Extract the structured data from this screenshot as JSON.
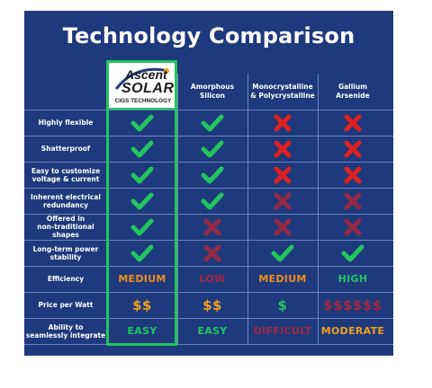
{
  "title": "Technology Comparison",
  "logo": {
    "line1": "Ascent",
    "line2": "SOLAR",
    "line3": "CIGS TECHNOLOGY"
  },
  "columns": [
    {
      "line1": "Amorphous",
      "line2": "Silicon"
    },
    {
      "line1": "Monocrystalline",
      "line2": "& Polycrystalline"
    },
    {
      "line1": "Gallium",
      "line2": "Arsenide"
    }
  ],
  "rows": [
    {
      "label1": "Highly flexible",
      "label2": "",
      "cells": [
        "check",
        "check",
        "cross",
        "cross"
      ]
    },
    {
      "label1": "Shatterproof",
      "label2": "",
      "cells": [
        "check",
        "check",
        "cross",
        "cross"
      ]
    },
    {
      "label1": "Easy to customize",
      "label2": "voltage & current",
      "cells": [
        "check",
        "check",
        "cross",
        "cross"
      ]
    },
    {
      "label1": "Inherent electrical",
      "label2": "redundancy",
      "cells": [
        "check",
        "check",
        "cross-dim",
        "cross-dim"
      ]
    },
    {
      "label1": "Offered in",
      "label2": "non-traditional shapes",
      "cells": [
        "check",
        "cross-dim",
        "cross-dim",
        "cross-dim"
      ]
    },
    {
      "label1": "Long-term power",
      "label2": "stability",
      "cells": [
        "check",
        "cross-dim",
        "check",
        "check"
      ]
    }
  ],
  "text_rows": [
    {
      "label1": "Efficiency",
      "label2": "",
      "kind": "word",
      "cells": [
        {
          "text": "MEDIUM",
          "color": "#f08c1e"
        },
        {
          "text": "LOW",
          "color": "#e02020",
          "dim": true
        },
        {
          "text": "MEDIUM",
          "color": "#f08c1e"
        },
        {
          "text": "HIGH",
          "color": "#22c55e"
        }
      ]
    },
    {
      "label1": "Price per Watt",
      "label2": "",
      "kind": "dollar",
      "cells": [
        {
          "text": "$$",
          "color": "#f0a01e"
        },
        {
          "text": "$$",
          "color": "#f0a01e"
        },
        {
          "text": "$",
          "color": "#22c55e"
        },
        {
          "text": "$$$$$$",
          "color": "#e02020",
          "dim": true
        }
      ]
    },
    {
      "label1": "Ability to",
      "label2": "seamlessly integrate",
      "kind": "word",
      "cells": [
        {
          "text": "EASY",
          "color": "#22c55e"
        },
        {
          "text": "EASY",
          "color": "#22c55e"
        },
        {
          "text": "DIFFICULT",
          "color": "#e02020",
          "dim": true
        },
        {
          "text": "MODERATE",
          "color": "#f0a01e"
        }
      ]
    }
  ],
  "colors": {
    "panel": "#1e3a7c",
    "check": "#22c55e",
    "cross": "#e02020",
    "highlight": "#22c55e"
  }
}
